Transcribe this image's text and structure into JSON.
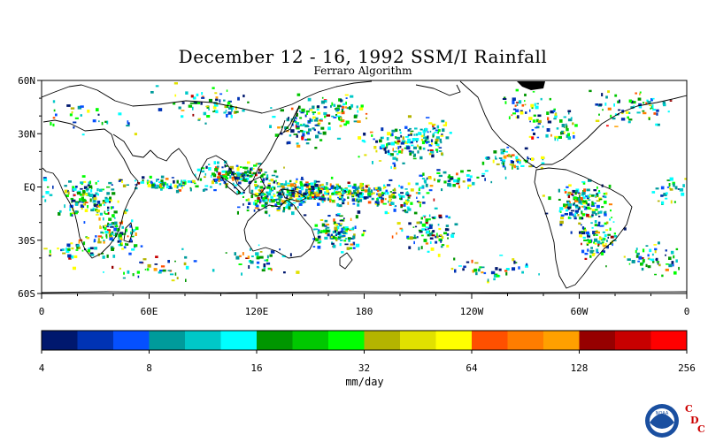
{
  "title": "December 12 - 16, 1992 SSM/I Rainfall",
  "subtitle": "Ferraro Algorithm",
  "map": {
    "lat_range": [
      -60,
      60
    ],
    "lon_range": [
      0,
      360
    ],
    "lat_labels": [
      {
        "lat": 60,
        "text": "60N"
      },
      {
        "lat": 30,
        "text": "30N"
      },
      {
        "lat": 0,
        "text": "EQ"
      },
      {
        "lat": -30,
        "text": "30S"
      },
      {
        "lat": -60,
        "text": "60S"
      }
    ],
    "lon_labels": [
      {
        "lon": 0,
        "text": "0"
      },
      {
        "lon": 60,
        "text": "60E"
      },
      {
        "lon": 120,
        "text": "120E"
      },
      {
        "lon": 180,
        "text": "180"
      },
      {
        "lon": 240,
        "text": "120W"
      },
      {
        "lon": 300,
        "text": "60W"
      },
      {
        "lon": 360,
        "text": "0"
      }
    ]
  },
  "colorbar": {
    "colors": [
      "#00186e",
      "#0033b4",
      "#0550ff",
      "#009b9b",
      "#00c8c8",
      "#00ffff",
      "#009600",
      "#00c800",
      "#00ff00",
      "#b4b400",
      "#e1e100",
      "#ffff00",
      "#ff5000",
      "#ff7d00",
      "#ffa000",
      "#960000",
      "#c80000",
      "#ff0000"
    ],
    "tick_labels": [
      "4",
      "8",
      "16",
      "32",
      "64",
      "128",
      "256"
    ],
    "unit": "mm/day"
  },
  "logo": {
    "agency": "NOAA",
    "letters": [
      "C",
      "D",
      "C"
    ]
  }
}
